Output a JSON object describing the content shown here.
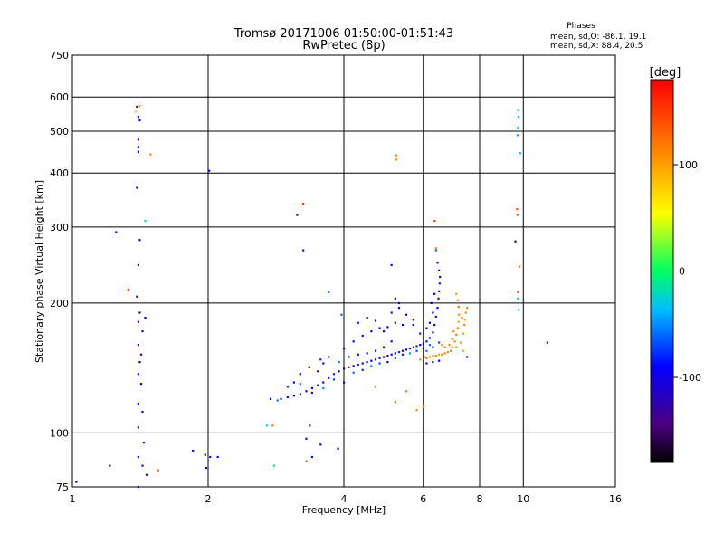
{
  "chart_data": {
    "type": "scatter",
    "title": "Tromsø 20171006 01:50:00-01:51:43",
    "subtitle": "RwPretec (8p)",
    "xlabel": "Frequency [MHz]",
    "ylabel": "Stationary phase Virtual Height [km]",
    "x_scale": "log",
    "y_scale": "log",
    "xlim": [
      1,
      16
    ],
    "ylim": [
      75,
      750
    ],
    "x_ticks": [
      "1",
      "2",
      "4",
      "6",
      "8",
      "10",
      "16"
    ],
    "y_ticks": [
      "75",
      "100",
      "200",
      "300",
      "400",
      "500",
      "600",
      "750"
    ],
    "grid": true,
    "info": {
      "heading": "Phases",
      "line_o": "mean, sd,O: -86.1, 19.1",
      "line_x": "mean, sd,X: 88.4, 20.5"
    },
    "colorbar": {
      "label": "[deg]",
      "ticks": [
        "100",
        "0",
        "-100"
      ],
      "range": [
        -180,
        180
      ]
    },
    "points_note": "approximate echo points: [frequency MHz, height km, phase deg]",
    "points": [
      [
        1.39,
        570,
        -120
      ],
      [
        1.41,
        572,
        100
      ],
      [
        1.38,
        555,
        80
      ],
      [
        1.4,
        540,
        -110
      ],
      [
        1.41,
        530,
        -120
      ],
      [
        1.4,
        478,
        -130
      ],
      [
        1.4,
        460,
        -100
      ],
      [
        1.4,
        448,
        -120
      ],
      [
        1.49,
        442,
        110
      ],
      [
        1.39,
        370,
        -120
      ],
      [
        1.45,
        310,
        -20
      ],
      [
        1.25,
        292,
        -130
      ],
      [
        1.41,
        280,
        -110
      ],
      [
        1.4,
        245,
        -140
      ],
      [
        1.33,
        215,
        150
      ],
      [
        1.39,
        207,
        -100
      ],
      [
        1.41,
        190,
        -150
      ],
      [
        1.45,
        185,
        -100
      ],
      [
        1.4,
        181,
        -140
      ],
      [
        1.43,
        172,
        -120
      ],
      [
        1.4,
        160,
        -150
      ],
      [
        1.42,
        152,
        -100
      ],
      [
        1.41,
        146,
        -120
      ],
      [
        1.4,
        137,
        -130
      ],
      [
        1.42,
        130,
        -90
      ],
      [
        1.4,
        117,
        -110
      ],
      [
        1.43,
        112,
        -100
      ],
      [
        1.4,
        103,
        -110
      ],
      [
        1.44,
        95,
        -100
      ],
      [
        1.4,
        88,
        -110
      ],
      [
        1.43,
        84,
        -120
      ],
      [
        1.46,
        80,
        -150
      ],
      [
        1.55,
        82,
        120
      ],
      [
        1.4,
        75,
        -90
      ],
      [
        1.21,
        84,
        -160
      ],
      [
        1.02,
        77,
        -130
      ],
      [
        2.01,
        405,
        -100
      ],
      [
        1.85,
        91,
        -100
      ],
      [
        1.97,
        89,
        -110
      ],
      [
        2.02,
        88,
        -120
      ],
      [
        2.1,
        88,
        -100
      ],
      [
        1.98,
        83,
        -90
      ],
      [
        2.8,
        84,
        -20
      ],
      [
        2.85,
        119,
        -60
      ],
      [
        2.7,
        104,
        -30
      ],
      [
        2.78,
        104,
        120
      ],
      [
        3.15,
        320,
        -120
      ],
      [
        3.25,
        340,
        150
      ],
      [
        3.25,
        265,
        -110
      ],
      [
        3.3,
        86,
        130
      ],
      [
        3.4,
        88,
        -100
      ],
      [
        3.36,
        104,
        -80
      ],
      [
        3.3,
        97,
        -110
      ],
      [
        3.55,
        94,
        -110
      ],
      [
        3.88,
        92,
        -110
      ],
      [
        3.7,
        212,
        -60
      ],
      [
        3.95,
        188,
        -60
      ],
      [
        5.23,
        430,
        110
      ],
      [
        5.22,
        440,
        120
      ],
      [
        5.1,
        245,
        -100
      ],
      [
        6.35,
        310,
        140
      ],
      [
        9.72,
        560,
        -30
      ],
      [
        9.76,
        540,
        -40
      ],
      [
        9.73,
        510,
        -20
      ],
      [
        9.7,
        490,
        -40
      ],
      [
        9.85,
        445,
        -30
      ],
      [
        9.68,
        330,
        140
      ],
      [
        9.7,
        320,
        140
      ],
      [
        9.6,
        278,
        -160
      ],
      [
        9.8,
        243,
        120
      ],
      [
        9.73,
        212,
        140
      ],
      [
        9.72,
        205,
        -30
      ],
      [
        9.76,
        193,
        -40
      ],
      [
        11.3,
        162,
        -120
      ],
      [
        5.8,
        113,
        110
      ],
      [
        6.0,
        115,
        110
      ],
      [
        5.2,
        118,
        130
      ],
      [
        4.7,
        128,
        120
      ],
      [
        5.5,
        125,
        120
      ],
      [
        2.75,
        120,
        -100
      ],
      [
        2.9,
        120,
        -80
      ],
      [
        3.0,
        121,
        -120
      ],
      [
        3.1,
        122,
        -100
      ],
      [
        3.2,
        123,
        -90
      ],
      [
        3.3,
        125,
        -110
      ],
      [
        3.4,
        127,
        -100
      ],
      [
        3.5,
        129,
        -90
      ],
      [
        3.6,
        131,
        -110
      ],
      [
        3.7,
        134,
        -100
      ],
      [
        3.8,
        137,
        -80
      ],
      [
        3.9,
        139,
        -100
      ],
      [
        4.0,
        141,
        -110
      ],
      [
        4.1,
        142,
        -90
      ],
      [
        4.2,
        143,
        -100
      ],
      [
        4.3,
        144,
        -80
      ],
      [
        4.4,
        145,
        -100
      ],
      [
        4.5,
        146,
        -110
      ],
      [
        4.6,
        147,
        -90
      ],
      [
        4.7,
        148,
        -100
      ],
      [
        4.8,
        149,
        -80
      ],
      [
        4.9,
        150,
        -100
      ],
      [
        5.0,
        151,
        -110
      ],
      [
        5.1,
        152,
        -90
      ],
      [
        5.2,
        153,
        -100
      ],
      [
        5.3,
        154,
        -80
      ],
      [
        5.4,
        155,
        -100
      ],
      [
        5.5,
        156,
        -110
      ],
      [
        5.6,
        157,
        -90
      ],
      [
        5.7,
        158,
        -100
      ],
      [
        5.8,
        159,
        -80
      ],
      [
        5.9,
        160,
        -100
      ],
      [
        6.0,
        161,
        -110
      ],
      [
        6.1,
        163,
        -90
      ],
      [
        6.2,
        166,
        -100
      ],
      [
        6.3,
        171,
        -80
      ],
      [
        6.35,
        178,
        -100
      ],
      [
        6.4,
        186,
        -110
      ],
      [
        6.45,
        195,
        -90
      ],
      [
        6.48,
        205,
        -100
      ],
      [
        6.5,
        213,
        -120
      ],
      [
        6.52,
        222,
        -110
      ],
      [
        6.53,
        230,
        -100
      ],
      [
        6.5,
        238,
        -110
      ],
      [
        6.45,
        248,
        -90
      ],
      [
        6.4,
        265,
        -60
      ],
      [
        6.4,
        268,
        110
      ],
      [
        3.0,
        128,
        -80
      ],
      [
        3.2,
        130,
        -60
      ],
      [
        3.4,
        124,
        -120
      ],
      [
        3.6,
        127,
        -50
      ],
      [
        3.8,
        133,
        -70
      ],
      [
        4.0,
        131,
        -90
      ],
      [
        4.2,
        138,
        -60
      ],
      [
        4.4,
        140,
        -80
      ],
      [
        4.6,
        143,
        -50
      ],
      [
        4.8,
        145,
        -70
      ],
      [
        5.0,
        146,
        -90
      ],
      [
        5.2,
        149,
        -60
      ],
      [
        5.4,
        152,
        -80
      ],
      [
        5.6,
        153,
        -50
      ],
      [
        5.8,
        155,
        -70
      ],
      [
        6.0,
        157,
        -90
      ],
      [
        6.2,
        160,
        -60
      ],
      [
        4.0,
        157,
        -100
      ],
      [
        4.2,
        163,
        -90
      ],
      [
        4.4,
        168,
        -110
      ],
      [
        4.6,
        172,
        -100
      ],
      [
        4.8,
        175,
        -90
      ],
      [
        5.0,
        176,
        -110
      ],
      [
        5.2,
        180,
        -100
      ],
      [
        5.4,
        178,
        -90
      ],
      [
        4.3,
        180,
        -100
      ],
      [
        4.5,
        185,
        -90
      ],
      [
        4.7,
        182,
        -110
      ],
      [
        4.9,
        172,
        -100
      ],
      [
        5.1,
        190,
        -120
      ],
      [
        5.3,
        195,
        -100
      ],
      [
        5.5,
        188,
        -110
      ],
      [
        5.7,
        183,
        -90
      ],
      [
        3.5,
        139,
        -120
      ],
      [
        3.7,
        150,
        -100
      ],
      [
        3.9,
        146,
        -60
      ],
      [
        3.6,
        145,
        -110
      ],
      [
        3.2,
        137,
        -90
      ],
      [
        3.1,
        131,
        -110
      ],
      [
        5.2,
        205,
        -100
      ],
      [
        5.3,
        200,
        -110
      ],
      [
        5.7,
        178,
        -100
      ],
      [
        5.9,
        170,
        -80
      ],
      [
        6.1,
        175,
        -100
      ],
      [
        6.2,
        180,
        -110
      ],
      [
        6.3,
        190,
        -90
      ],
      [
        6.25,
        200,
        -100
      ],
      [
        6.35,
        210,
        -110
      ],
      [
        6.1,
        155,
        -60
      ],
      [
        6.3,
        158,
        -80
      ],
      [
        6.5,
        162,
        -70
      ],
      [
        4.9,
        158,
        -90
      ],
      [
        5.1,
        163,
        -100
      ],
      [
        4.1,
        150,
        -110
      ],
      [
        4.3,
        152,
        -100
      ],
      [
        4.5,
        153,
        -90
      ],
      [
        4.7,
        155,
        -110
      ],
      [
        3.35,
        142,
        -100
      ],
      [
        3.55,
        148,
        -80
      ],
      [
        6.05,
        150,
        110
      ],
      [
        6.2,
        150,
        100
      ],
      [
        6.4,
        151,
        110
      ],
      [
        6.6,
        152,
        120
      ],
      [
        6.8,
        154,
        110
      ],
      [
        6.95,
        158,
        100
      ],
      [
        7.05,
        163,
        110
      ],
      [
        7.1,
        169,
        120
      ],
      [
        7.15,
        175,
        110
      ],
      [
        7.18,
        181,
        100
      ],
      [
        7.2,
        188,
        110
      ],
      [
        7.18,
        196,
        120
      ],
      [
        7.15,
        203,
        110
      ],
      [
        7.1,
        210,
        100
      ],
      [
        7.3,
        185,
        110
      ],
      [
        7.4,
        178,
        120
      ],
      [
        7.35,
        170,
        110
      ],
      [
        7.25,
        162,
        100
      ],
      [
        7.1,
        158,
        110
      ],
      [
        6.9,
        155,
        120
      ],
      [
        6.7,
        153,
        110
      ],
      [
        6.5,
        152,
        100
      ],
      [
        6.3,
        151,
        110
      ],
      [
        6.1,
        149,
        120
      ],
      [
        5.9,
        148,
        110
      ],
      [
        7.45,
        190,
        110
      ],
      [
        7.5,
        195,
        120
      ],
      [
        7.42,
        183,
        100
      ],
      [
        6.85,
        160,
        110
      ],
      [
        6.95,
        165,
        120
      ],
      [
        7.0,
        172,
        110
      ],
      [
        6.7,
        158,
        120
      ],
      [
        6.6,
        160,
        110
      ],
      [
        7.35,
        155,
        100
      ],
      [
        6.1,
        145,
        -100
      ],
      [
        6.3,
        146,
        -110
      ],
      [
        6.5,
        147,
        -90
      ],
      [
        7.5,
        150,
        -90
      ]
    ]
  }
}
